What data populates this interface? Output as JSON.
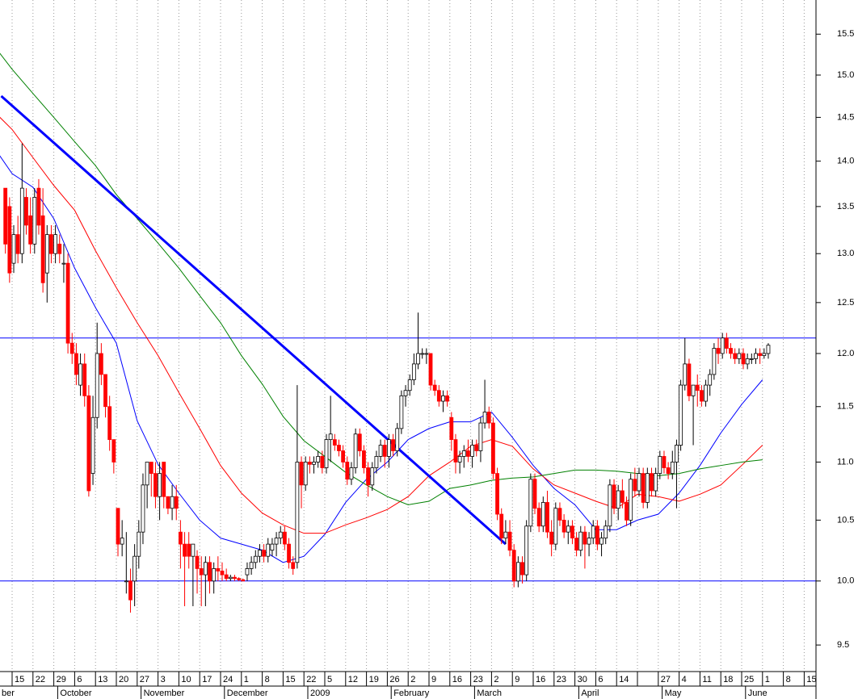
{
  "chart_data": {
    "type": "candlestick",
    "ylim": [
      9.3,
      15.93
    ],
    "log_scale": true,
    "yticks": [
      9.5,
      {
        "value": 10,
        "label": "10.0"
      },
      10.5,
      {
        "value": 11,
        "label": "11.0"
      },
      11.5,
      {
        "value": 12,
        "label": "12.0"
      },
      12.5,
      {
        "value": 13,
        "label": "13.0"
      },
      13.5,
      {
        "value": 14,
        "label": "14.0"
      },
      14.5,
      {
        "value": 15,
        "label": "15.0"
      },
      15.5
    ],
    "categories": [
      null,
      "15",
      "22",
      "29",
      "6",
      "13",
      "20",
      "27",
      "3",
      "10",
      "17",
      "24",
      "1",
      "8",
      "15",
      "22",
      "5",
      "12",
      "19",
      "26",
      "2",
      "9",
      "16",
      "23",
      "2",
      "9",
      "16",
      "23",
      "30",
      "6",
      "14",
      null,
      "27",
      "4",
      "11",
      "18",
      "25",
      "1",
      "8",
      "15"
    ],
    "months": [
      "ber",
      null,
      null,
      null,
      "October",
      null,
      null,
      null,
      "November",
      null,
      null,
      null,
      "December",
      null,
      null,
      null,
      "2009",
      null,
      null,
      null,
      "February",
      null,
      null,
      null,
      "March",
      null,
      null,
      null,
      null,
      "April",
      null,
      null,
      null,
      "May",
      null,
      null,
      null,
      "June",
      null,
      null
    ],
    "grid": true,
    "up_color": "#ffffff",
    "down_color": "#ff0000",
    "candles": [
      null,
      null,
      null,
      [
        13.7,
        13.7,
        13.0,
        13.1
      ],
      [
        13.5,
        13.6,
        12.7,
        12.8
      ],
      [
        12.9,
        13.3,
        12.8,
        13.2
      ],
      [
        13.2,
        13.4,
        12.9,
        13.0
      ],
      [
        13.0,
        14.2,
        12.9,
        13.7
      ],
      [
        13.6,
        13.7,
        13.2,
        13.3
      ],
      [
        13.4,
        13.6,
        13.0,
        13.1
      ],
      [
        13.1,
        13.7,
        13.0,
        13.6
      ],
      [
        13.7,
        13.8,
        13.2,
        13.3
      ],
      [
        13.4,
        13.7,
        12.6,
        12.7
      ],
      [
        12.8,
        13.3,
        12.5,
        13.2
      ],
      [
        13.2,
        13.3,
        12.9,
        13.0
      ],
      [
        13.0,
        13.3,
        12.9,
        13.2
      ],
      [
        13.1,
        13.2,
        12.9,
        13.0
      ],
      [
        12.9,
        13.1,
        12.7,
        12.9
      ],
      [
        12.9,
        13.0,
        12.0,
        12.1
      ],
      [
        12.1,
        12.2,
        11.9,
        12.0
      ],
      [
        12.0,
        12.1,
        11.7,
        11.8
      ],
      [
        11.7,
        12.0,
        11.6,
        11.9
      ],
      [
        11.9,
        12.0,
        11.5,
        11.6
      ],
      [
        11.6,
        11.7,
        10.7,
        10.75
      ],
      [
        10.9,
        11.6,
        10.8,
        11.4
      ],
      [
        11.4,
        12.3,
        11.3,
        12.0
      ],
      [
        12.0,
        12.1,
        11.7,
        11.8
      ],
      [
        11.8,
        11.8,
        11.4,
        11.5
      ],
      [
        11.5,
        11.6,
        11.1,
        11.2
      ],
      [
        11.2,
        11.2,
        10.9,
        11.0
      ],
      [
        10.6,
        10.6,
        10.2,
        10.3
      ],
      [
        10.3,
        10.5,
        10.2,
        10.35
      ],
      [
        10.0,
        10.4,
        9.9,
        10.0
      ],
      [
        10.0,
        10.1,
        9.75,
        9.85
      ],
      [
        10.0,
        10.3,
        9.8,
        10.2
      ],
      [
        10.2,
        10.5,
        10.1,
        10.4
      ],
      [
        10.4,
        10.9,
        10.3,
        10.8
      ],
      [
        10.8,
        11.0,
        10.6,
        11.0
      ],
      [
        11.0,
        11.0,
        10.7,
        10.9
      ],
      [
        10.9,
        11.0,
        10.6,
        10.7
      ],
      [
        10.7,
        11.0,
        10.5,
        10.9
      ],
      [
        11.0,
        11.0,
        10.6,
        10.7
      ],
      [
        10.7,
        10.7,
        10.55,
        10.6
      ],
      [
        10.6,
        10.8,
        10.5,
        10.7
      ],
      [
        10.7,
        10.8,
        10.5,
        10.6
      ],
      [
        10.4,
        10.5,
        10.1,
        10.3
      ],
      [
        10.3,
        10.4,
        9.8,
        10.2
      ],
      [
        10.3,
        10.4,
        10.1,
        10.2
      ],
      [
        10.2,
        10.3,
        9.8,
        10.3
      ],
      [
        10.2,
        10.25,
        9.9,
        10.1
      ],
      [
        10.1,
        10.2,
        9.8,
        10.05
      ],
      [
        10.05,
        10.2,
        9.8,
        10.15
      ],
      [
        10.15,
        10.2,
        9.9,
        10.0
      ],
      [
        10.0,
        10.15,
        9.9,
        10.1
      ],
      [
        10.1,
        10.2,
        10.0,
        10.08
      ],
      [
        10.08,
        10.15,
        10.0,
        10.05
      ],
      [
        10.05,
        10.1,
        10.0,
        10.02
      ],
      [
        10.02,
        10.05,
        10.0,
        10.03
      ],
      [
        10.03,
        10.05,
        10.0,
        10.02
      ],
      [
        10.02,
        10.03,
        10.0,
        10.01
      ],
      [
        10.01,
        10.02,
        10.0,
        10.0
      ],
      [
        10.05,
        10.15,
        10.0,
        10.1
      ],
      [
        10.1,
        10.2,
        10.05,
        10.15
      ],
      [
        10.15,
        10.25,
        10.1,
        10.2
      ],
      [
        10.2,
        10.3,
        10.15,
        10.25
      ],
      [
        10.25,
        10.3,
        10.15,
        10.2
      ],
      [
        10.2,
        10.35,
        10.15,
        10.3
      ],
      [
        10.25,
        10.35,
        10.2,
        10.3
      ],
      [
        10.3,
        10.4,
        10.2,
        10.35
      ],
      [
        10.35,
        10.45,
        10.3,
        10.4
      ],
      [
        10.4,
        10.45,
        10.25,
        10.3
      ],
      [
        10.3,
        10.35,
        10.1,
        10.15
      ],
      [
        10.15,
        10.2,
        10.05,
        10.1
      ],
      [
        10.15,
        11.7,
        10.1,
        11.0
      ],
      [
        11.0,
        11.05,
        10.6,
        10.8
      ],
      [
        10.8,
        11.05,
        10.75,
        11.0
      ],
      [
        11.0,
        11.05,
        10.9,
        10.98
      ],
      [
        10.98,
        11.05,
        10.9,
        11.0
      ],
      [
        11.0,
        11.1,
        10.95,
        11.05
      ],
      [
        11.05,
        11.1,
        10.9,
        10.95
      ],
      [
        10.95,
        11.25,
        10.9,
        11.2
      ],
      [
        11.2,
        11.6,
        11.0,
        11.25
      ],
      [
        11.2,
        11.25,
        11.1,
        11.15
      ],
      [
        11.15,
        11.2,
        11.05,
        11.1
      ],
      [
        11.1,
        11.15,
        10.95,
        11.0
      ],
      [
        11.0,
        11.05,
        10.8,
        10.85
      ],
      [
        10.85,
        11.0,
        10.8,
        10.95
      ],
      [
        10.95,
        11.3,
        10.9,
        11.25
      ],
      [
        11.25,
        11.3,
        11.05,
        11.1
      ],
      [
        11.1,
        11.15,
        10.9,
        10.95
      ],
      [
        10.95,
        11.0,
        10.7,
        10.8
      ],
      [
        10.8,
        11.0,
        10.75,
        10.95
      ],
      [
        10.95,
        11.1,
        10.9,
        11.05
      ],
      [
        11.05,
        11.2,
        11.0,
        11.15
      ],
      [
        11.15,
        11.2,
        10.95,
        11.05
      ],
      [
        11.05,
        11.25,
        10.95,
        11.2
      ],
      [
        11.2,
        11.25,
        11.05,
        11.1
      ],
      [
        11.1,
        11.35,
        11.05,
        11.3
      ],
      [
        11.3,
        11.65,
        11.25,
        11.6
      ],
      [
        11.6,
        11.7,
        11.5,
        11.65
      ],
      [
        11.65,
        11.8,
        11.6,
        11.75
      ],
      [
        11.75,
        12.0,
        11.7,
        11.9
      ],
      [
        11.9,
        12.4,
        11.85,
        12.0
      ],
      [
        12.0,
        12.05,
        11.95,
        12.0
      ],
      [
        12.0,
        12.05,
        11.9,
        12.0
      ],
      [
        12.0,
        12.0,
        11.65,
        11.7
      ],
      [
        11.7,
        11.75,
        11.6,
        11.65
      ],
      [
        11.65,
        11.7,
        11.5,
        11.55
      ],
      [
        11.55,
        11.65,
        11.45,
        11.6
      ],
      [
        11.6,
        11.65,
        11.5,
        11.55
      ],
      [
        11.4,
        11.45,
        11.1,
        11.2
      ],
      [
        11.2,
        11.25,
        10.9,
        11.0
      ],
      [
        11.0,
        11.1,
        10.9,
        11.05
      ],
      [
        11.05,
        11.15,
        10.95,
        11.1
      ],
      [
        11.1,
        11.2,
        11.0,
        11.05
      ],
      [
        11.05,
        11.2,
        10.95,
        11.15
      ],
      [
        11.15,
        11.2,
        11.05,
        11.1
      ],
      [
        11.1,
        11.4,
        11.0,
        11.35
      ],
      [
        11.35,
        11.75,
        11.3,
        11.45
      ],
      [
        11.45,
        11.5,
        11.3,
        11.35
      ],
      [
        11.35,
        11.4,
        10.85,
        10.9
      ],
      [
        10.9,
        10.95,
        10.5,
        10.55
      ],
      [
        10.55,
        10.6,
        10.3,
        10.35
      ],
      [
        10.35,
        10.5,
        10.3,
        10.4
      ],
      [
        10.4,
        10.5,
        10.2,
        10.25
      ],
      [
        10.25,
        10.3,
        9.95,
        10.0
      ],
      [
        10.0,
        10.2,
        9.95,
        10.15
      ],
      [
        10.15,
        10.2,
        9.98,
        10.05
      ],
      [
        10.05,
        10.5,
        10.0,
        10.45
      ],
      [
        10.45,
        10.9,
        10.4,
        10.85
      ],
      [
        10.85,
        10.9,
        10.55,
        10.6
      ],
      [
        10.6,
        10.65,
        10.4,
        10.45
      ],
      [
        10.45,
        10.7,
        10.4,
        10.65
      ],
      [
        10.65,
        10.75,
        10.35,
        10.4
      ],
      [
        10.4,
        10.5,
        10.2,
        10.3
      ],
      [
        10.3,
        10.65,
        10.25,
        10.6
      ],
      [
        10.6,
        10.65,
        10.45,
        10.5
      ],
      [
        10.5,
        10.55,
        10.35,
        10.4
      ],
      [
        10.4,
        10.5,
        10.3,
        10.45
      ],
      [
        10.45,
        10.5,
        10.3,
        10.35
      ],
      [
        10.35,
        10.4,
        10.2,
        10.25
      ],
      [
        10.25,
        10.45,
        10.2,
        10.4
      ],
      [
        10.4,
        10.45,
        10.1,
        10.3
      ],
      [
        10.3,
        10.4,
        10.2,
        10.35
      ],
      [
        10.35,
        10.5,
        10.3,
        10.45
      ],
      [
        10.45,
        10.5,
        10.25,
        10.3
      ],
      [
        10.3,
        10.4,
        10.2,
        10.35
      ],
      [
        10.35,
        10.5,
        10.3,
        10.45
      ],
      [
        10.45,
        10.85,
        10.4,
        10.8
      ],
      [
        10.8,
        10.85,
        10.55,
        10.6
      ],
      [
        10.6,
        10.8,
        10.5,
        10.75
      ],
      [
        10.75,
        10.85,
        10.6,
        10.65
      ],
      [
        10.65,
        10.7,
        10.45,
        10.5
      ],
      [
        10.5,
        10.9,
        10.45,
        10.85
      ],
      [
        10.85,
        10.95,
        10.7,
        10.75
      ],
      [
        10.75,
        10.95,
        10.7,
        10.9
      ],
      [
        10.9,
        10.95,
        10.6,
        10.65
      ],
      [
        10.65,
        10.95,
        10.6,
        10.9
      ],
      [
        10.9,
        10.95,
        10.7,
        10.75
      ],
      [
        10.75,
        10.95,
        10.7,
        10.9
      ],
      [
        10.9,
        11.1,
        10.85,
        11.05
      ],
      [
        11.05,
        11.1,
        10.9,
        10.95
      ],
      [
        10.95,
        11.0,
        10.85,
        10.9
      ],
      [
        10.9,
        11.1,
        10.85,
        11.0
      ],
      [
        11.0,
        11.2,
        10.6,
        11.15
      ],
      [
        11.15,
        11.75,
        11.1,
        11.7
      ],
      [
        11.7,
        12.15,
        11.65,
        11.9
      ],
      [
        11.9,
        11.95,
        11.55,
        11.6
      ],
      [
        11.6,
        11.65,
        11.15,
        11.7
      ],
      [
        11.7,
        11.8,
        11.5,
        11.65
      ],
      [
        11.65,
        11.7,
        11.5,
        11.55
      ],
      [
        11.55,
        11.75,
        11.5,
        11.7
      ],
      [
        11.7,
        11.85,
        11.6,
        11.8
      ],
      [
        11.8,
        12.1,
        11.75,
        12.05
      ],
      [
        12.05,
        12.15,
        11.9,
        12.0
      ],
      [
        12.0,
        12.2,
        11.95,
        12.15
      ],
      [
        12.15,
        12.2,
        12.0,
        12.05
      ],
      [
        12.05,
        12.1,
        11.95,
        12.0
      ],
      [
        12.0,
        12.05,
        11.9,
        11.95
      ],
      [
        11.95,
        12.05,
        11.9,
        12.0
      ],
      [
        12.0,
        12.05,
        11.85,
        11.9
      ],
      [
        11.9,
        12.0,
        11.85,
        11.95
      ],
      [
        11.95,
        12.0,
        11.9,
        11.95
      ],
      [
        11.95,
        12.05,
        11.9,
        12.0
      ],
      [
        12.0,
        12.05,
        11.9,
        11.98
      ],
      [
        11.98,
        12.05,
        11.95,
        12.0
      ],
      [
        12.0,
        12.1,
        11.95,
        12.08
      ]
    ],
    "moving_averages": [
      {
        "color": "#0000ff",
        "values": [
          14.2,
          13.86,
          13.71,
          13.37,
          12.85,
          12.45,
          12.1,
          11.37,
          10.98,
          10.73,
          10.5,
          10.35,
          10.3,
          10.25,
          10.15,
          10.2,
          10.38,
          10.65,
          10.85,
          11.0,
          11.2,
          11.3,
          11.36,
          11.36,
          11.45,
          11.22,
          10.97,
          10.77,
          10.63,
          10.42,
          10.42,
          10.5,
          10.55,
          10.73,
          10.97,
          11.26,
          11.52,
          11.75,
          null,
          null
        ]
      },
      {
        "color": "#ff0000",
        "values": [
          14.6,
          14.36,
          14.04,
          13.73,
          13.46,
          13.03,
          12.65,
          12.3,
          11.98,
          11.63,
          11.3,
          10.97,
          10.73,
          10.56,
          10.46,
          10.39,
          10.39,
          10.46,
          10.52,
          10.59,
          10.7,
          10.88,
          11.0,
          11.14,
          11.2,
          11.14,
          10.94,
          10.8,
          10.73,
          10.66,
          10.6,
          10.72,
          10.7,
          10.66,
          10.72,
          10.8,
          10.97,
          11.15,
          null,
          null
        ]
      },
      {
        "color": "#008000",
        "values": [
          15.4,
          15.07,
          14.78,
          14.5,
          14.22,
          13.95,
          13.63,
          13.37,
          13.11,
          12.85,
          12.57,
          12.3,
          11.98,
          11.71,
          11.41,
          11.19,
          11.05,
          10.91,
          10.8,
          10.7,
          10.63,
          10.66,
          10.77,
          10.8,
          10.84,
          10.86,
          10.87,
          10.9,
          10.93,
          10.93,
          10.92,
          10.9,
          10.88,
          10.9,
          10.94,
          10.97,
          11.0,
          11.02,
          null,
          null
        ]
      }
    ],
    "hlines": [
      12.15,
      10.0
    ],
    "hline_color": "#0000ff",
    "trendline": {
      "color": "#0000ff",
      "from": [
        2,
        14.75
      ],
      "to": [
        123,
        10.3
      ]
    }
  }
}
